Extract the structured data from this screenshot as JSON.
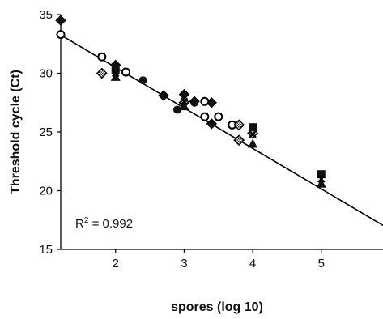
{
  "chart_data": {
    "type": "scatter",
    "xlabel": "spores (log 10)",
    "ylabel": "Threshold cycle (Ct)",
    "x_ticks": [
      "2",
      "3",
      "4",
      "5"
    ],
    "y_ticks": [
      "15",
      "20",
      "25",
      "30",
      "35"
    ],
    "xlim": [
      1.2,
      5.9
    ],
    "ylim": [
      15,
      35
    ],
    "grid": false,
    "annotation": {
      "prefix": "R",
      "sup": "2",
      "suffix": " = 0.992"
    },
    "trendline": {
      "slope": -3.45,
      "intercept": 37.4
    },
    "series": [
      {
        "marker": "diamond-filled",
        "points": [
          [
            1.2,
            34.5
          ],
          [
            2.0,
            30.7
          ],
          [
            2.7,
            28.1
          ],
          [
            3.0,
            28.2
          ],
          [
            3.15,
            27.6
          ],
          [
            3.4,
            25.7
          ],
          [
            3.4,
            27.5
          ]
        ]
      },
      {
        "marker": "circle-open",
        "points": [
          [
            1.2,
            33.3
          ],
          [
            1.8,
            31.4
          ],
          [
            2.15,
            30.1
          ],
          [
            3.3,
            27.6
          ],
          [
            3.5,
            26.3
          ],
          [
            3.3,
            26.3
          ],
          [
            3.7,
            25.6
          ]
        ]
      },
      {
        "marker": "diamond-patterned",
        "points": [
          [
            1.8,
            30.0
          ],
          [
            3.8,
            25.6
          ],
          [
            3.8,
            24.3
          ],
          [
            3.0,
            27.5
          ],
          [
            4.0,
            24.9
          ]
        ]
      },
      {
        "marker": "circle-filled",
        "points": [
          [
            2.4,
            29.4
          ],
          [
            2.9,
            26.9
          ],
          [
            3.15,
            27.5
          ],
          [
            2.0,
            30.2
          ]
        ]
      },
      {
        "marker": "triangle-filled",
        "points": [
          [
            2.0,
            29.7
          ],
          [
            3.0,
            27.2
          ],
          [
            4.0,
            24.0
          ],
          [
            5.0,
            20.6
          ]
        ]
      },
      {
        "marker": "square-filled",
        "points": [
          [
            2.0,
            30.3
          ],
          [
            4.0,
            25.4
          ],
          [
            5.0,
            21.4
          ]
        ]
      },
      {
        "marker": "x-cross",
        "points": [
          [
            2.0,
            30.0
          ],
          [
            3.0,
            27.6
          ],
          [
            4.0,
            24.8
          ],
          [
            5.0,
            21.0
          ]
        ]
      }
    ]
  }
}
